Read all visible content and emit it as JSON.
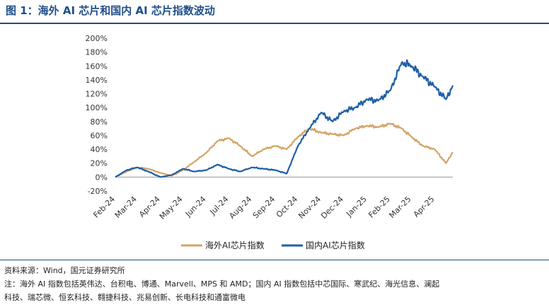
{
  "title": "图 1：海外 AI 芯片和国内 AI 芯片指数波动",
  "source": "资料来源：Wind，国元证券研究所",
  "note_line1": "注：海外 AI 指数包括英伟达、台积电、博通、Marvell、MPS 和 AMD；国内 AI 指数包括中芯国际、寒武纪、海光信息、澜起",
  "note_line2": "科技、瑞芯微、恒玄科技、翱捷科技、兆易创新、长电科技和通富微电",
  "colors": {
    "overseas": "#d4a466",
    "domestic": "#1f5fa8",
    "accent": "#1f4e89"
  },
  "chart_data": {
    "type": "line",
    "x": [
      "2024-02-01",
      "2024-02-16",
      "2024-03-01",
      "2024-03-16",
      "2024-04-01",
      "2024-04-16",
      "2024-05-01",
      "2024-05-16",
      "2024-06-01",
      "2024-06-16",
      "2024-07-01",
      "2024-07-16",
      "2024-08-01",
      "2024-08-16",
      "2024-09-01",
      "2024-09-16",
      "2024-10-01",
      "2024-10-16",
      "2024-11-01",
      "2024-11-16",
      "2024-12-01",
      "2024-12-16",
      "2025-01-01",
      "2025-01-16",
      "2025-02-01",
      "2025-02-16",
      "2025-03-01",
      "2025-03-16",
      "2025-04-01",
      "2025-04-16",
      "2025-04-25"
    ],
    "series": [
      {
        "name": "海外AI芯片指数",
        "values": [
          0,
          8,
          14,
          12,
          6,
          2,
          10,
          22,
          35,
          52,
          56,
          45,
          30,
          40,
          45,
          40,
          58,
          70,
          64,
          62,
          60,
          70,
          74,
          72,
          77,
          70,
          58,
          45,
          40,
          20,
          36
        ]
      },
      {
        "name": "国内AI芯片指数",
        "values": [
          0,
          10,
          14,
          8,
          0,
          3,
          12,
          8,
          10,
          18,
          12,
          8,
          14,
          12,
          10,
          5,
          45,
          70,
          93,
          80,
          95,
          100,
          112,
          110,
          125,
          165,
          160,
          145,
          130,
          112,
          132
        ]
      }
    ],
    "x_ticks": [
      "Feb-24",
      "Mar-24",
      "Apr-24",
      "May-24",
      "Jun-24",
      "Jul-24",
      "Aug-24",
      "Sep-24",
      "Oct-24",
      "Nov-24",
      "Dec-24",
      "Jan-25",
      "Feb-25",
      "Mar-25",
      "Apr-25"
    ],
    "y_ticks": [
      "-20%",
      "0%",
      "20%",
      "40%",
      "60%",
      "80%",
      "100%",
      "120%",
      "140%",
      "160%",
      "180%",
      "200%"
    ],
    "ylim": [
      -20,
      200
    ],
    "grid": false,
    "legend_position": "bottom-center"
  }
}
